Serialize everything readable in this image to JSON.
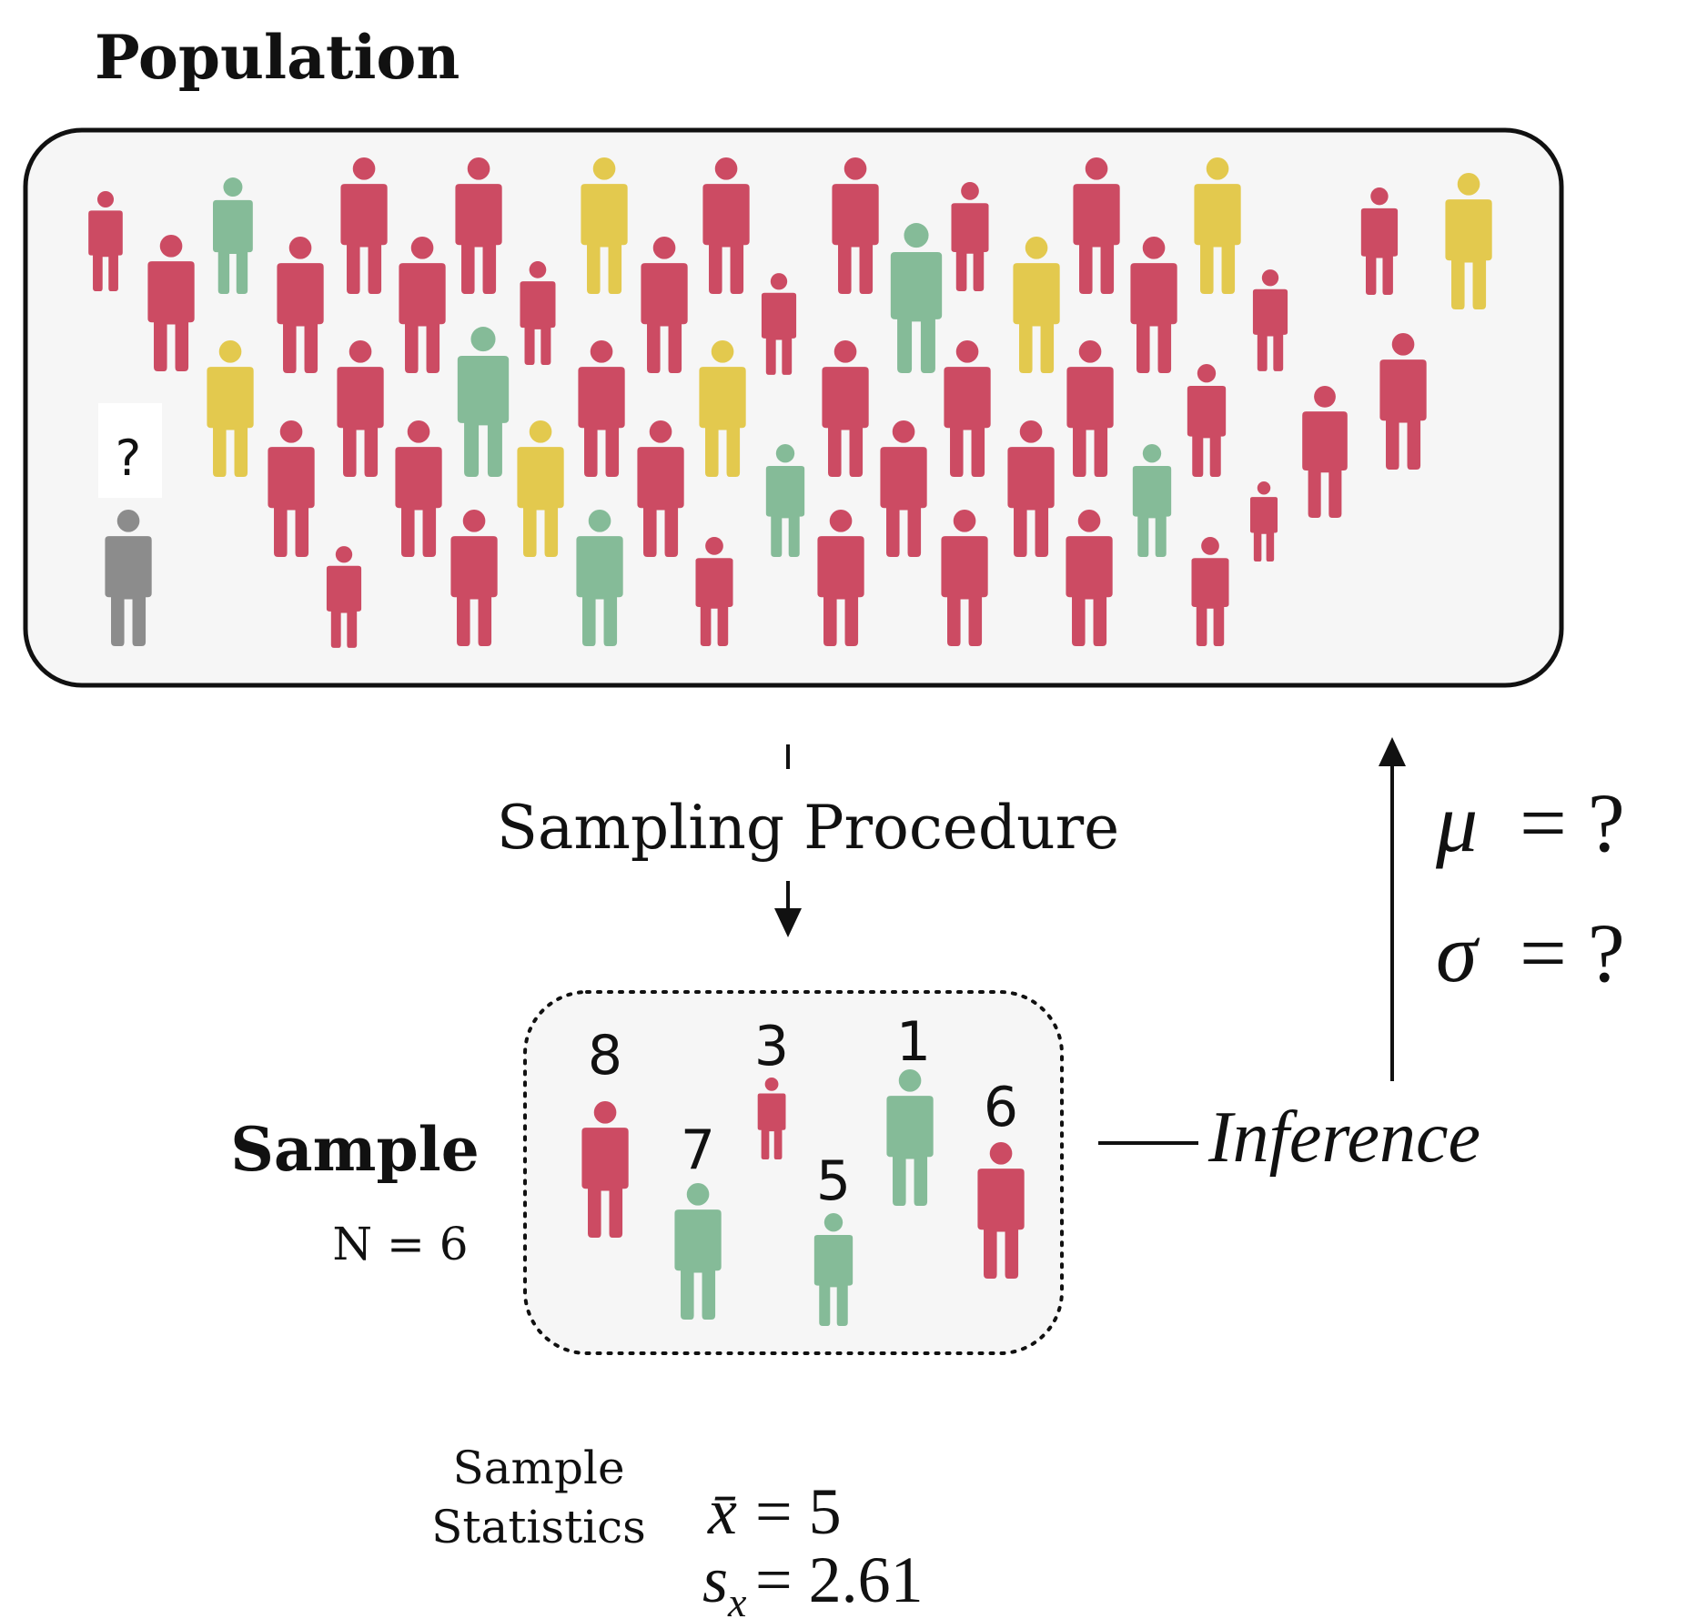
{
  "title": "Population",
  "population_unknown_label": "?",
  "sampling_label": "Sampling Procedure",
  "sample": {
    "title": "Sample",
    "size_label": "N = 6",
    "numbers": [
      "8",
      "3",
      "1",
      "7",
      "5",
      "6"
    ]
  },
  "inference_label": "Inference",
  "parameters": {
    "mu_symbol": "μ",
    "mu_value": "= ?",
    "sigma_symbol": "σ",
    "sigma_value": "= ?"
  },
  "statistics": {
    "label_line1": "Sample",
    "label_line2": "Statistics",
    "mean_symbol": "x̄",
    "mean_value": "= 5",
    "sd_symbol": "s",
    "sd_subscript": "x",
    "sd_value": "= 2.61"
  },
  "colors": {
    "red": "#cc4b63",
    "green": "#85bb98",
    "yellow": "#e3c94e",
    "gray": "#8c8c8c",
    "panel_fill": "#f6f6f6",
    "stroke": "#111111"
  },
  "icons": {
    "person": "person-icon",
    "arrow": "arrow-icon"
  }
}
